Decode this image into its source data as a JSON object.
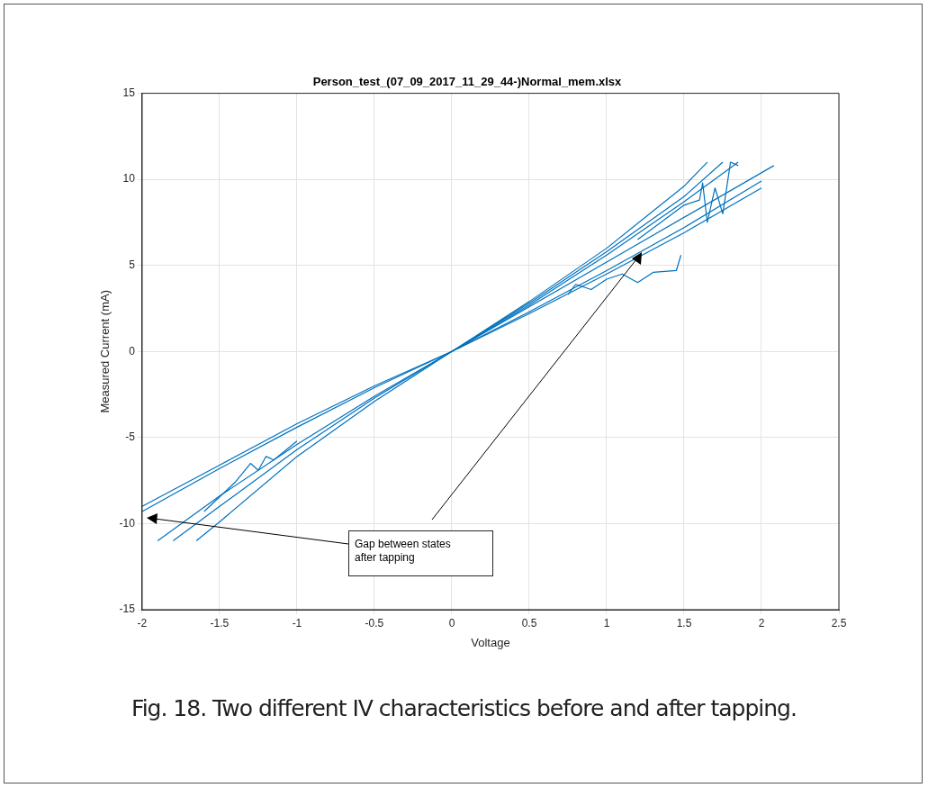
{
  "chart_data": {
    "type": "line",
    "title": "Person_test_(07_09_2017_11_29_44-)Normal_mem.xlsx",
    "xlabel": "Voltage",
    "ylabel": "Measured Current (mA)",
    "xlim": [
      -2,
      2.5
    ],
    "xticks": [
      -2,
      -1.5,
      -1,
      -0.5,
      0,
      0.5,
      1,
      1.5,
      2,
      2.5
    ],
    "ylim": [
      -15,
      15
    ],
    "yticks": [
      -15,
      -10,
      -5,
      0,
      5,
      10,
      15
    ],
    "grid": true,
    "legend": false,
    "marker": "none",
    "line_style": "solid",
    "series": [
      {
        "color": "#0072bd",
        "x": [
          -2,
          -1.5,
          -1,
          -0.5,
          0,
          0.5,
          1,
          1.5,
          2
        ],
        "values": [
          -9.3,
          -6.8,
          -4.4,
          -2.1,
          0,
          2.2,
          4.5,
          6.9,
          9.5
        ]
      },
      {
        "color": "#0072bd",
        "x": [
          -2,
          -1.5,
          -1,
          -0.5,
          0,
          0.5,
          1,
          1.5,
          2
        ],
        "values": [
          -9.0,
          -6.6,
          -4.2,
          -2.0,
          0,
          2.3,
          4.7,
          7.2,
          9.9
        ]
      },
      {
        "color": "#0072bd",
        "x": [
          -1.65,
          -1.5,
          -1,
          -0.5,
          0,
          0.5,
          1,
          1.5,
          1.65
        ],
        "values": [
          -11,
          -9.9,
          -6.1,
          -2.9,
          0,
          2.9,
          6.0,
          9.6,
          11
        ]
      },
      {
        "color": "#0072bd",
        "x": [
          -1.9,
          -1.5,
          -1,
          -0.5,
          0,
          0.5,
          1,
          1.5,
          1.85
        ],
        "values": [
          -11,
          -8.4,
          -5.4,
          -2.6,
          0,
          2.7,
          5.6,
          8.7,
          11
        ]
      },
      {
        "color": "#0072bd",
        "x": [
          -1.8,
          -1.5,
          -1,
          -0.5,
          0,
          0.5,
          1,
          1.5,
          1.75
        ],
        "values": [
          -11,
          -9.0,
          -5.7,
          -2.7,
          0,
          2.8,
          5.8,
          9.0,
          11
        ]
      },
      {
        "color": "#0072bd",
        "x": [
          0,
          1,
          2.08
        ],
        "values": [
          0,
          5.2,
          10.8
        ]
      },
      {
        "color": "#0072bd",
        "x": [
          0.75,
          0.8,
          0.9,
          1.0,
          1.1,
          1.2,
          1.3,
          1.45,
          1.48
        ],
        "values": [
          3.3,
          3.9,
          3.6,
          4.2,
          4.5,
          4.0,
          4.6,
          4.7,
          5.6
        ]
      },
      {
        "color": "#0072bd",
        "x": [
          1.2,
          1.5,
          1.6,
          1.62,
          1.65,
          1.7,
          1.75,
          1.8,
          1.85
        ],
        "values": [
          6.5,
          8.5,
          8.8,
          9.8,
          7.5,
          9.5,
          8.0,
          11,
          10.8
        ]
      },
      {
        "color": "#0072bd",
        "x": [
          -1.6,
          -1.4,
          -1.3,
          -1.25,
          -1.2,
          -1.15,
          -1.0
        ],
        "values": [
          -9.3,
          -7.6,
          -6.5,
          -6.9,
          -6.1,
          -6.3,
          -5.2
        ]
      }
    ],
    "annotations": [
      "Gap between states\nafter tapping",
      "Fig. 18. Two different IV characteristics before and after tapping."
    ]
  }
}
